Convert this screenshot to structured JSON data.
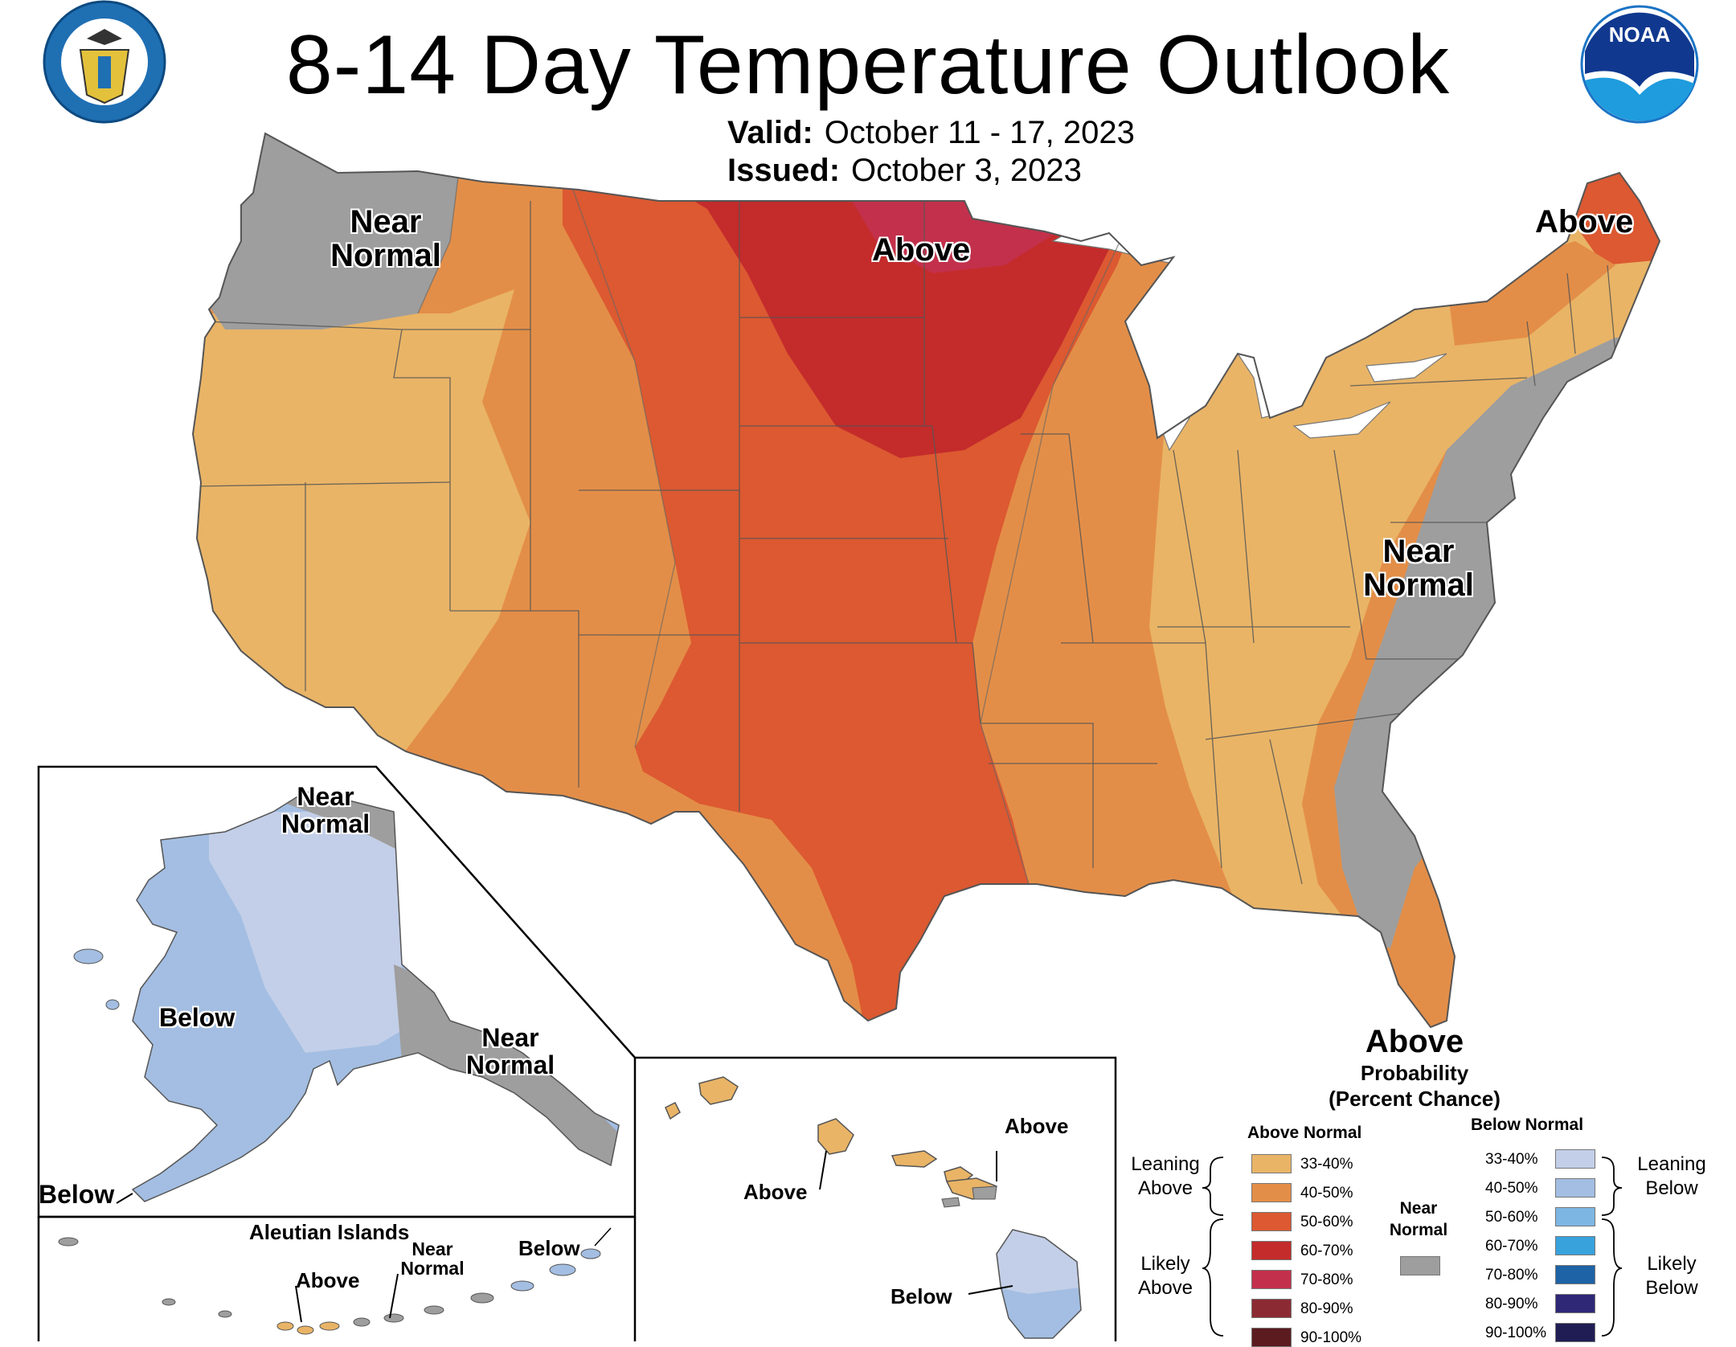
{
  "header": {
    "title": "8-14 Day Temperature Outlook",
    "valid_label": "Valid:",
    "valid_value": "October 11 - 17, 2023",
    "issued_label": "Issued:",
    "issued_value": "October 3, 2023"
  },
  "logos": {
    "left": "department-of-commerce-seal",
    "right": "noaa-logo",
    "noaa_text": "NOAA"
  },
  "colors": {
    "above_33_40": "#E9B466",
    "above_40_50": "#E38E48",
    "above_50_60": "#DC5931",
    "above_60_70": "#C42B2B",
    "above_70_80": "#C3304B",
    "above_80_90": "#8B2A33",
    "above_90_100": "#5B1B1F",
    "near_normal": "#9E9E9E",
    "below_33_40": "#C3CFE8",
    "below_40_50": "#A3BEE2",
    "below_50_60": "#7DB6E3",
    "below_60_70": "#38A2DD",
    "below_70_80": "#1E63A6",
    "below_80_90": "#2E2877",
    "below_90_100": "#201D54"
  },
  "map_labels": {
    "conus_near_normal_nw": "Near Normal",
    "conus_above_north": "Above",
    "conus_above_maine": "Above",
    "conus_near_normal_east": "Near Normal",
    "conus_above_south": "Above",
    "alaska_near_normal_north": "Near Normal",
    "alaska_below": "Below",
    "alaska_near_normal_southeast": "Near Normal",
    "alaska_below_southwest": "Below",
    "aleutian_title": "Aleutian Islands",
    "aleutian_above": "Above",
    "aleutian_near_normal": "Near Normal",
    "aleutian_below": "Below",
    "hawaii_above_right": "Above",
    "hawaii_above_left": "Above",
    "hawaii_below": "Below"
  },
  "legend": {
    "title_line1": "Probability",
    "title_line2": "(Percent Chance)",
    "above_header": "Above Normal",
    "below_header": "Below Normal",
    "near_header": "Near Normal",
    "leaning_above": "Leaning Above",
    "likely_above": "Likely Above",
    "leaning_below": "Leaning Below",
    "likely_below": "Likely Below",
    "categories": [
      "33-40%",
      "40-50%",
      "50-60%",
      "60-70%",
      "70-80%",
      "80-90%",
      "90-100%"
    ]
  }
}
